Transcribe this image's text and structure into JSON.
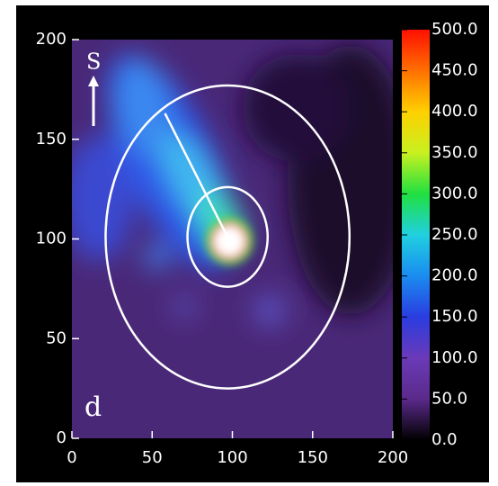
{
  "chart_data": {
    "type": "heatmap",
    "xlim": [
      0,
      200
    ],
    "xticks": [
      0,
      50,
      100,
      150,
      200
    ],
    "ylim": [
      0,
      200
    ],
    "yticks": [
      0,
      50,
      100,
      150,
      200
    ],
    "north_label": "S",
    "panel_label": "d",
    "circles": [
      {
        "x": 97,
        "y": 101,
        "r": 25,
        "color": "#ffffff"
      },
      {
        "x": 97,
        "y": 101,
        "r": 76,
        "color": "#ffffff"
      }
    ],
    "pointer": {
      "x": [
        97,
        58
      ],
      "y": [
        101,
        163
      ],
      "color": "#ffffff"
    },
    "colorbar": {
      "lim": [
        0,
        500
      ],
      "ticks": [
        {
          "value": 0,
          "label": "0.0"
        },
        {
          "value": 50,
          "label": "50.0"
        },
        {
          "value": 100,
          "label": "100.0"
        },
        {
          "value": 150,
          "label": "150.0"
        },
        {
          "value": 200,
          "label": "200.0"
        },
        {
          "value": 250,
          "label": "250.0"
        },
        {
          "value": 300,
          "label": "300.0"
        },
        {
          "value": 350,
          "label": "350.0"
        },
        {
          "value": 400,
          "label": "400.0"
        },
        {
          "value": 450,
          "label": "450.0"
        },
        {
          "value": 500,
          "label": "500.0"
        }
      ],
      "colors": [
        "#000000",
        "#5a2a8a",
        "#6a3ab8",
        "#2a3ce0",
        "#1a8cf0",
        "#20d0e0",
        "#20e040",
        "#c8f020",
        "#ffd000",
        "#ff7000",
        "#ff1000"
      ]
    }
  }
}
